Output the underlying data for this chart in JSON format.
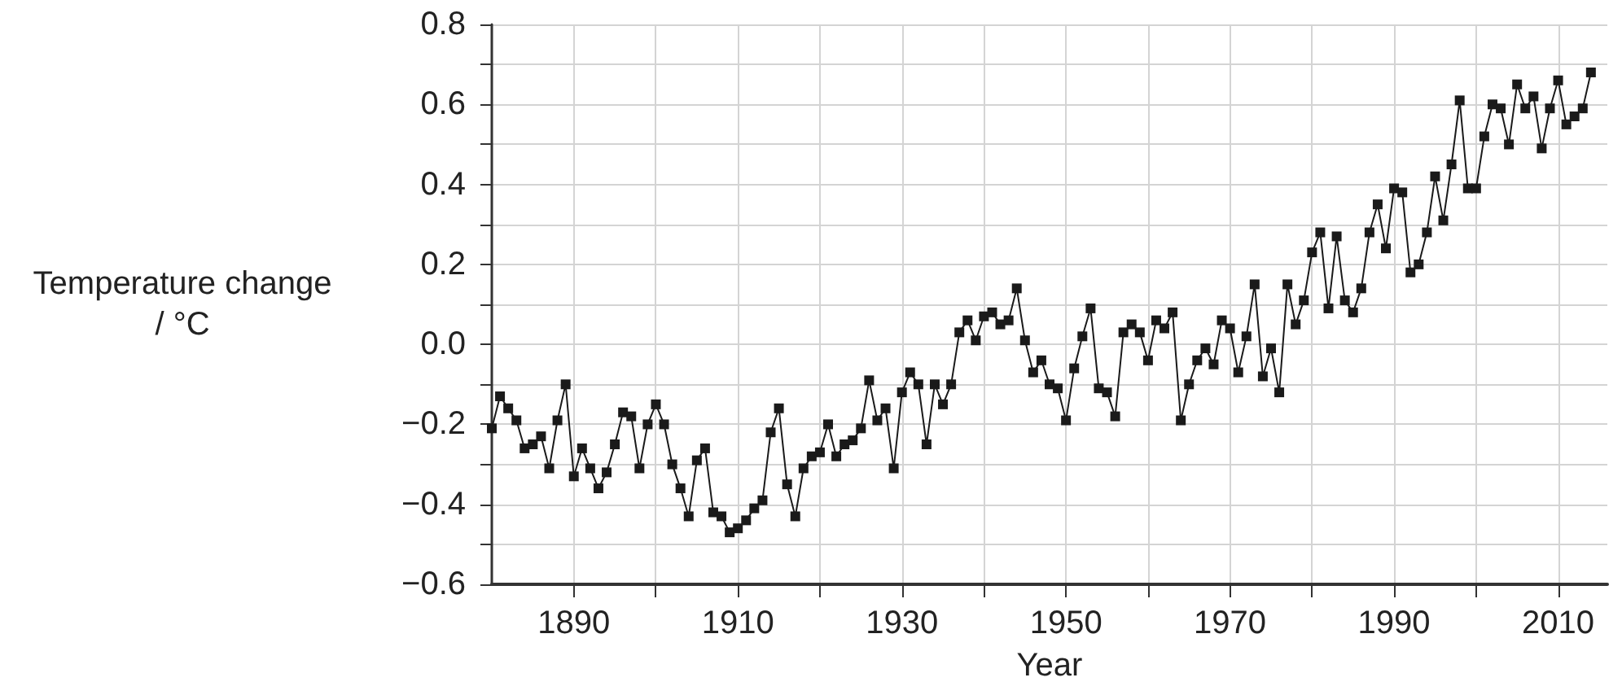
{
  "chart_data": {
    "type": "line",
    "xlabel": "Year",
    "ylabel": "Temperature change\n/ °C",
    "x": [
      1880,
      1881,
      1882,
      1883,
      1884,
      1885,
      1886,
      1887,
      1888,
      1889,
      1890,
      1891,
      1892,
      1893,
      1894,
      1895,
      1896,
      1897,
      1898,
      1899,
      1900,
      1901,
      1902,
      1903,
      1904,
      1905,
      1906,
      1907,
      1908,
      1909,
      1910,
      1911,
      1912,
      1913,
      1914,
      1915,
      1916,
      1917,
      1918,
      1919,
      1920,
      1921,
      1922,
      1923,
      1924,
      1925,
      1926,
      1927,
      1928,
      1929,
      1930,
      1931,
      1932,
      1933,
      1934,
      1935,
      1936,
      1937,
      1938,
      1939,
      1940,
      1941,
      1942,
      1943,
      1944,
      1945,
      1946,
      1947,
      1948,
      1949,
      1950,
      1951,
      1952,
      1953,
      1954,
      1955,
      1956,
      1957,
      1958,
      1959,
      1960,
      1961,
      1962,
      1963,
      1964,
      1965,
      1966,
      1967,
      1968,
      1969,
      1970,
      1971,
      1972,
      1973,
      1974,
      1975,
      1976,
      1977,
      1978,
      1979,
      1980,
      1981,
      1982,
      1983,
      1984,
      1985,
      1986,
      1987,
      1988,
      1989,
      1990,
      1991,
      1992,
      1993,
      1994,
      1995,
      1996,
      1997,
      1998,
      1999,
      2000,
      2001,
      2002,
      2003,
      2004,
      2005,
      2006,
      2007,
      2008,
      2009,
      2010,
      2011,
      2012,
      2013,
      2014
    ],
    "series": [
      {
        "color": "#1a1a1a",
        "values": [
          -0.21,
          -0.13,
          -0.16,
          -0.19,
          -0.26,
          -0.25,
          -0.23,
          -0.31,
          -0.19,
          -0.1,
          -0.33,
          -0.26,
          -0.31,
          -0.36,
          -0.32,
          -0.25,
          -0.17,
          -0.18,
          -0.31,
          -0.2,
          -0.15,
          -0.2,
          -0.3,
          -0.36,
          -0.43,
          -0.29,
          -0.26,
          -0.42,
          -0.43,
          -0.47,
          -0.46,
          -0.44,
          -0.41,
          -0.39,
          -0.22,
          -0.16,
          -0.35,
          -0.43,
          -0.31,
          -0.28,
          -0.27,
          -0.2,
          -0.28,
          -0.25,
          -0.24,
          -0.21,
          -0.09,
          -0.19,
          -0.16,
          -0.31,
          -0.12,
          -0.07,
          -0.1,
          -0.25,
          -0.1,
          -0.15,
          -0.1,
          0.03,
          0.06,
          0.01,
          0.07,
          0.08,
          0.05,
          0.06,
          0.14,
          0.01,
          -0.07,
          -0.04,
          -0.1,
          -0.11,
          -0.19,
          -0.06,
          0.02,
          0.09,
          -0.11,
          -0.12,
          -0.18,
          0.03,
          0.05,
          0.03,
          -0.04,
          0.06,
          0.04,
          0.08,
          -0.19,
          -0.1,
          -0.04,
          -0.01,
          -0.05,
          0.06,
          0.04,
          -0.07,
          0.02,
          0.15,
          -0.08,
          -0.01,
          -0.12,
          0.15,
          0.05,
          0.11,
          0.23,
          0.28,
          0.09,
          0.27,
          0.11,
          0.08,
          0.14,
          0.28,
          0.35,
          0.24,
          0.39,
          0.38,
          0.18,
          0.2,
          0.28,
          0.42,
          0.31,
          0.45,
          0.61,
          0.39,
          0.39,
          0.52,
          0.6,
          0.59,
          0.5,
          0.65,
          0.59,
          0.62,
          0.49,
          0.59,
          0.66,
          0.55,
          0.57,
          0.59,
          0.68
        ]
      }
    ],
    "xlim": [
      1880,
      2016
    ],
    "xticks": [
      1890,
      {
        "value": 1900,
        "label": null
      },
      1910,
      {
        "value": 1920,
        "label": null
      },
      1930,
      {
        "value": 1940,
        "label": null
      },
      1950,
      {
        "value": 1960,
        "label": null
      },
      1970,
      {
        "value": 1980,
        "label": null
      },
      1990,
      {
        "value": 2000,
        "label": null
      },
      2010
    ],
    "ylim": [
      -0.6,
      0.8
    ],
    "yticks": [
      {
        "value": -0.6,
        "label": "−0.6"
      },
      {
        "value": -0.5,
        "label": null
      },
      {
        "value": -0.4,
        "label": "−0.4"
      },
      {
        "value": -0.3,
        "label": null
      },
      {
        "value": -0.2,
        "label": "−0.2"
      },
      {
        "value": -0.1,
        "label": null
      },
      {
        "value": 0,
        "label": "0.0"
      },
      {
        "value": 0.1,
        "label": null
      },
      0.2,
      {
        "value": 0.3,
        "label": null
      },
      0.4,
      {
        "value": 0.5,
        "label": null
      },
      0.6,
      {
        "value": 0.7,
        "label": null
      },
      0.8
    ],
    "grid": true,
    "marker": "square",
    "line_style": "solid"
  }
}
